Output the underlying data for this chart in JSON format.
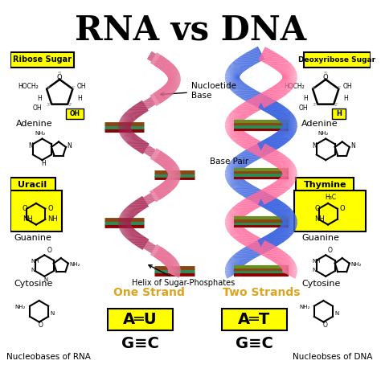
{
  "title": "RNA vs DNA",
  "bg_color": "#ffffff",
  "yellow": "#FFFF00",
  "labels": {
    "ribose_sugar": "Ribose Sugar",
    "deoxyribose_sugar": "Deoxyribose Sugar",
    "adenine_left": "Adenine",
    "uracil": "Uracil",
    "guanine_left": "Guanine",
    "cytosine_left": "Cytosine",
    "nucleobases_rna": "Nucleobases of RNA",
    "adenine_right": "Adenine",
    "thymine": "Thymine",
    "guanine_right": "Guanine",
    "cytosine_right": "Cytosine",
    "nucleobases_dna": "Nucleobses of DNA",
    "nucleotide_base": "Nucloetide\nBase",
    "base_pair": "Base Pair",
    "helix": "Helix of Sugar-Phosphates",
    "one_strand": "One Strand",
    "two_strands": "Two Strands"
  }
}
